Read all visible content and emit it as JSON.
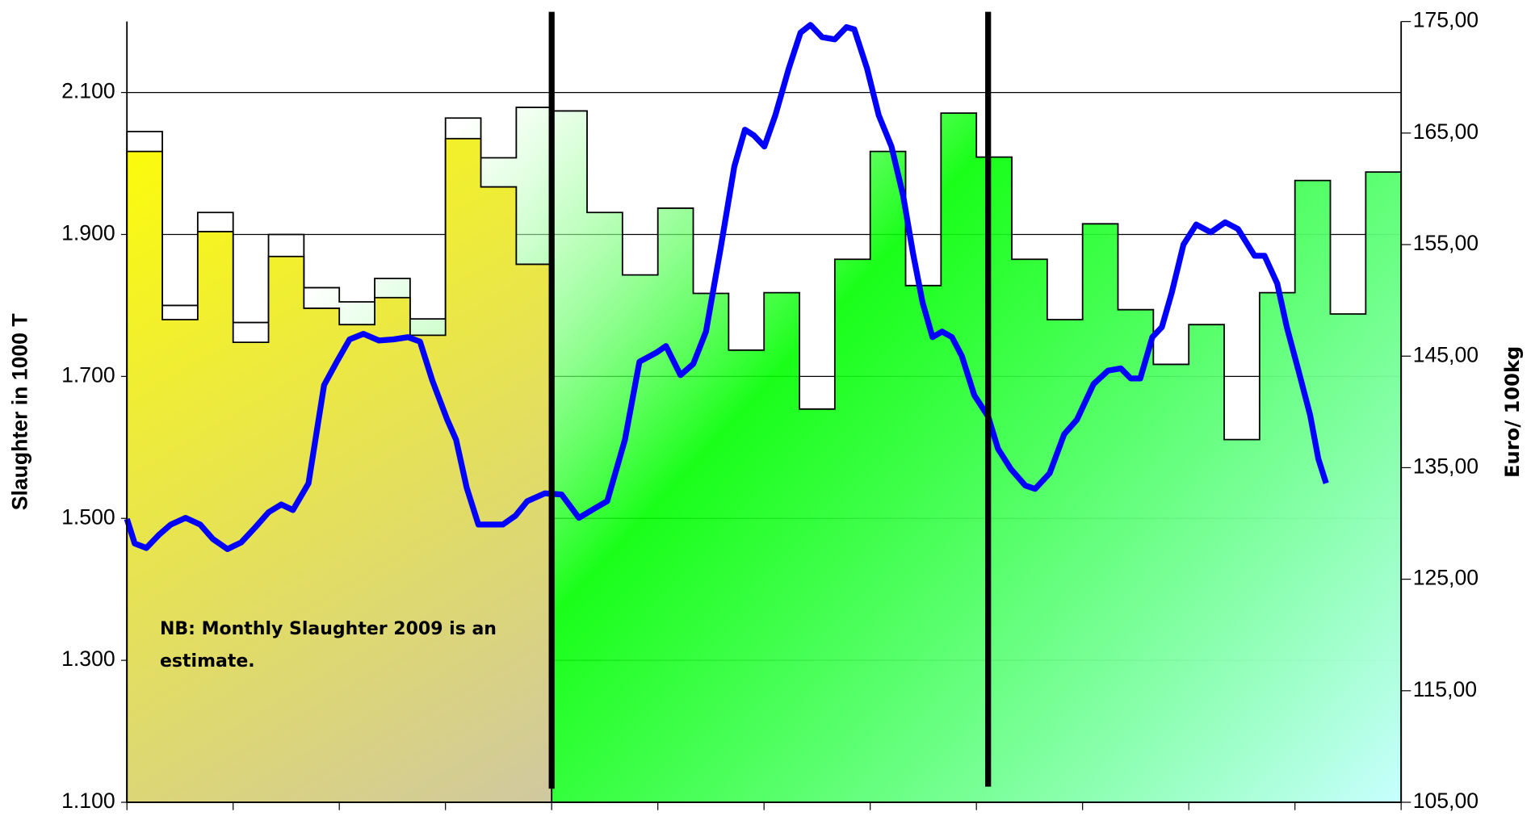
{
  "chart_data": {
    "type": "combo",
    "annotation": "NB:  Monthly Slaughter 2009 is an estimate.",
    "ylabel": "Slaughter in 1000 T",
    "y2label": "Euro/ 100kg",
    "xlim": [
      0,
      36
    ],
    "xticks": [
      0,
      3,
      6,
      9,
      12,
      15,
      18,
      21,
      24,
      27,
      30,
      33,
      36
    ],
    "ylim": [
      1100,
      2200
    ],
    "yticks": [
      {
        "value": 1100,
        "label": "1.100"
      },
      {
        "value": 1300,
        "label": "1.300"
      },
      {
        "value": 1500,
        "label": "1.500"
      },
      {
        "value": 1700,
        "label": "1.700"
      },
      {
        "value": 1900,
        "label": "1.900"
      },
      {
        "value": 2100,
        "label": "2.100"
      }
    ],
    "y2lim": [
      105,
      175
    ],
    "y2ticks": [
      {
        "value": 105,
        "label": "105,00"
      },
      {
        "value": 115,
        "label": "115,00"
      },
      {
        "value": 125,
        "label": "125,00"
      },
      {
        "value": 135,
        "label": "135,00"
      },
      {
        "value": 145,
        "label": "145,00"
      },
      {
        "value": 155,
        "label": "155,00"
      },
      {
        "value": 165,
        "label": "165,00"
      },
      {
        "value": 175,
        "label": "175,00"
      }
    ],
    "grid": true,
    "series": [
      {
        "type": "step-area",
        "color": "#00ff00",
        "values": [
          2045,
          1800,
          1931,
          1776,
          1900,
          1825,
          1805,
          1838,
          1781,
          2064,
          2008,
          2079,
          2074,
          1931,
          1843,
          1937,
          1817,
          1737,
          1818,
          1654,
          1865,
          2017,
          1828,
          2071,
          2009,
          1865,
          1780,
          1915,
          1794,
          1717,
          1773,
          1611,
          1818,
          1976,
          1788,
          1988
        ]
      },
      {
        "type": "step-area",
        "color": "#ffff00",
        "values": [
          2017,
          1780,
          1904,
          1748,
          1869,
          1796,
          1773,
          1811,
          1758,
          2035,
          1967,
          1858,
          null,
          null,
          null,
          null,
          null,
          null,
          null,
          null,
          null,
          null,
          null,
          null,
          null,
          null,
          null,
          null,
          null,
          null,
          null,
          null,
          null,
          null,
          null,
          null
        ]
      },
      {
        "type": "line",
        "axis": "y2",
        "color": "#0000ff",
        "x": [
          0,
          0.22,
          0.55,
          0.91,
          1.24,
          1.66,
          2.07,
          2.43,
          2.84,
          3.23,
          3.64,
          4.0,
          4.36,
          4.69,
          5.13,
          5.57,
          5.93,
          6.29,
          6.68,
          7.12,
          7.53,
          7.94,
          8.28,
          8.63,
          9.05,
          9.3,
          9.6,
          9.93,
          10.62,
          10.98,
          11.31,
          11.81,
          12.28,
          12.77,
          13.19,
          13.57,
          14.07,
          14.48,
          14.95,
          15.23,
          15.64,
          16.0,
          16.36,
          16.77,
          17.16,
          17.46,
          17.71,
          18.01,
          18.32,
          18.7,
          19.03,
          19.31,
          19.64,
          20.0,
          20.33,
          20.55,
          20.91,
          21.24,
          21.6,
          21.93,
          22.21,
          22.48,
          22.76,
          23.03,
          23.31,
          23.59,
          23.94,
          24.33,
          24.61,
          24.97,
          25.38,
          25.66,
          26.07,
          26.48,
          26.84,
          27.31,
          27.72,
          28.08,
          28.36,
          28.63,
          28.97,
          29.24,
          29.52,
          29.85,
          30.21,
          30.62,
          31.03,
          31.39,
          31.86,
          32.14,
          32.5,
          32.77,
          33.1,
          33.43,
          33.66,
          33.88
        ],
        "values": [
          130.4,
          128.2,
          127.8,
          129.0,
          129.9,
          130.5,
          129.9,
          128.6,
          127.7,
          128.3,
          129.7,
          131.0,
          131.7,
          131.2,
          133.6,
          142.4,
          144.5,
          146.5,
          147.0,
          146.4,
          146.5,
          146.7,
          146.3,
          142.8,
          139.3,
          137.5,
          133.2,
          129.9,
          129.9,
          130.7,
          132.0,
          132.7,
          132.6,
          130.5,
          131.3,
          132.0,
          137.5,
          144.5,
          145.3,
          145.9,
          143.3,
          144.3,
          147.2,
          154.6,
          162.0,
          165.3,
          164.8,
          163.8,
          166.6,
          170.8,
          174.0,
          174.7,
          173.6,
          173.4,
          174.5,
          174.3,
          170.8,
          166.6,
          163.8,
          159.4,
          154.2,
          149.8,
          146.7,
          147.2,
          146.7,
          145.0,
          141.5,
          139.6,
          136.7,
          134.9,
          133.4,
          133.1,
          134.5,
          138.0,
          139.3,
          142.5,
          143.7,
          143.9,
          143.0,
          143.0,
          146.7,
          147.6,
          150.7,
          155.0,
          156.8,
          156.1,
          157.0,
          156.4,
          154.0,
          154.0,
          151.5,
          147.6,
          143.7,
          139.7,
          135.8,
          133.6
        ]
      }
    ]
  }
}
